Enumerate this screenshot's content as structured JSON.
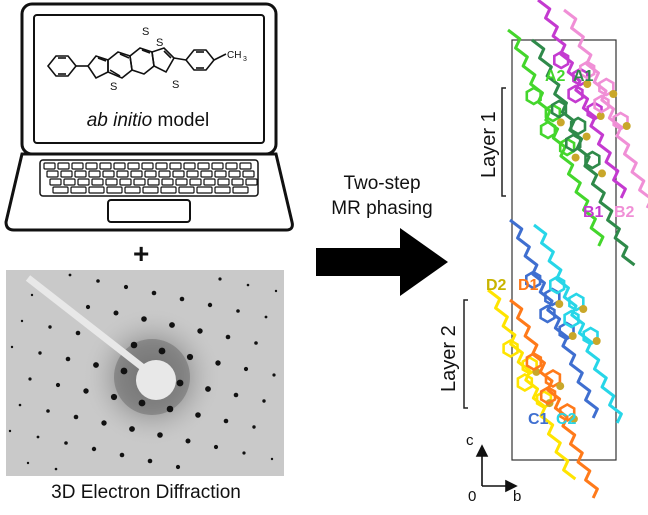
{
  "model": {
    "label_italic": "ab initio",
    "label_rest": "model",
    "molecule": {
      "methyl_label": "CH",
      "methyl_sub": "3",
      "sulfur_label": "S"
    }
  },
  "plus_sign": "+",
  "diffraction": {
    "caption": "3D Electron Diffraction"
  },
  "phasing": {
    "line1": "Two-step",
    "line2": "MR phasing"
  },
  "structure": {
    "layer1": "Layer 1",
    "layer2": "Layer 2",
    "chains": [
      {
        "label": "A2",
        "color": "#44d62c"
      },
      {
        "label": "A1",
        "color": "#2f8a4a"
      },
      {
        "label": "B1",
        "color": "#c43ad0"
      },
      {
        "label": "B2",
        "color": "#f08fd6"
      },
      {
        "label": "D2",
        "color": "#ffe400"
      },
      {
        "label": "D1",
        "color": "#ff7a1a"
      },
      {
        "label": "C1",
        "color": "#3f6fd0"
      },
      {
        "label": "C2",
        "color": "#27d6e8"
      }
    ],
    "axes": {
      "c": "c",
      "b": "b",
      "origin": "0"
    }
  }
}
